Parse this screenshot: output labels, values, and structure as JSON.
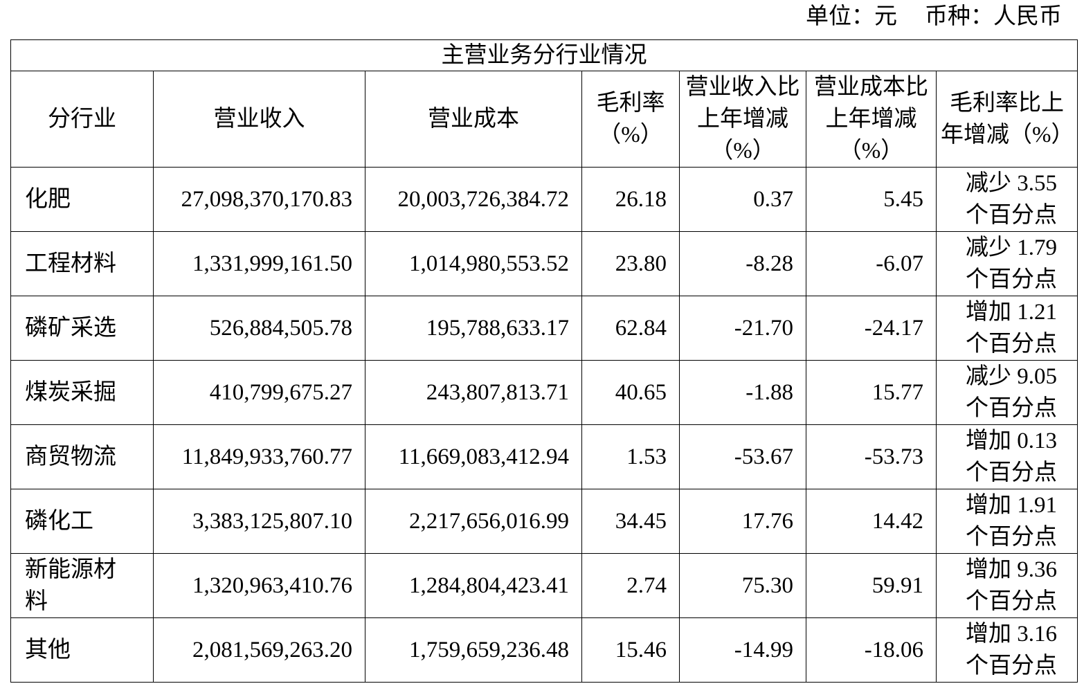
{
  "unit": "单位：元",
  "currency": "币种：人民币",
  "table": {
    "title": "主营业务分行业情况",
    "header": [
      "分行业",
      "营业收入",
      "营业成本",
      "毛利率（%）",
      "营业收入比上年增减（%）",
      "营业成本比上年增减（%）",
      "毛利率比上年增减（%）"
    ],
    "rows": [
      [
        "化肥",
        "27,098,370,170.83",
        "20,003,726,384.72",
        "26.18",
        "0.37",
        "5.45",
        "减少 3.55 个百分点"
      ],
      [
        "工程材料",
        "1,331,999,161.50",
        "1,014,980,553.52",
        "23.80",
        "-8.28",
        "-6.07",
        "减少 1.79 个百分点"
      ],
      [
        "磷矿采选",
        "526,884,505.78",
        "195,788,633.17",
        "62.84",
        "-21.70",
        "-24.17",
        "增加 1.21 个百分点"
      ],
      [
        "煤炭采掘",
        "410,799,675.27",
        "243,807,813.71",
        "40.65",
        "-1.88",
        "15.77",
        "减少 9.05 个百分点"
      ],
      [
        "商贸物流",
        "11,849,933,760.77",
        "11,669,083,412.94",
        "1.53",
        "-53.67",
        "-53.73",
        "增加 0.13 个百分点"
      ],
      [
        "磷化工",
        "3,383,125,807.10",
        "2,217,656,016.99",
        "34.45",
        "17.76",
        "14.42",
        "增加 1.91 个百分点"
      ],
      [
        "新能源材料",
        "1,320,963,410.76",
        "1,284,804,423.41",
        "2.74",
        "75.30",
        "59.91",
        "增加 9.36 个百分点"
      ],
      [
        "其他",
        "2,081,569,263.20",
        "1,759,659,236.48",
        "15.46",
        "-14.99",
        "-18.06",
        "增加 3.16 个百分点"
      ]
    ]
  }
}
